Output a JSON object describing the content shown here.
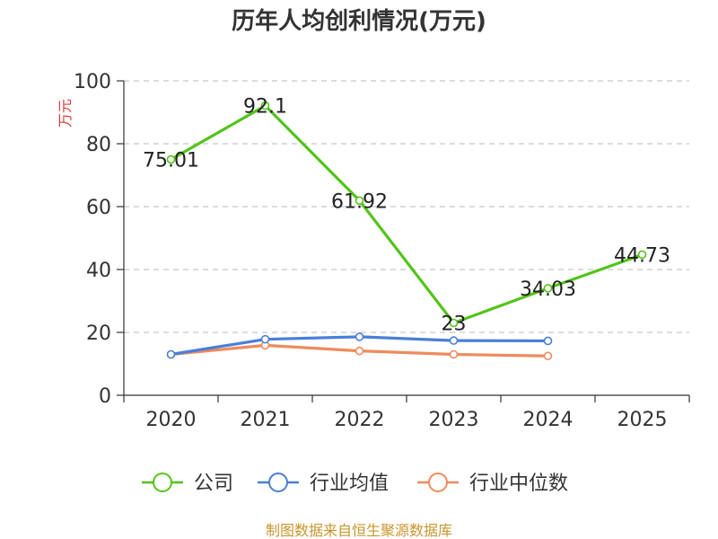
{
  "chart_data": {
    "type": "line",
    "title": "历年人均创利情况(万元)",
    "ylabel": "万元",
    "xlabel": "",
    "categories": [
      "2020",
      "2021",
      "2022",
      "2023",
      "2024",
      "2025"
    ],
    "ylim": [
      0,
      100
    ],
    "yticks": [
      0,
      20,
      40,
      60,
      80,
      100
    ],
    "grid": true,
    "legend_position": "bottom",
    "series": [
      {
        "name": "公司",
        "color": "#52c41a",
        "values": [
          75.01,
          92.1,
          61.92,
          23,
          34.03,
          44.73
        ],
        "labels": [
          "75.01",
          "92.1",
          "61.92",
          "23",
          "34.03",
          "44.73"
        ]
      },
      {
        "name": "行业均值",
        "color": "#4a7fd9",
        "values": [
          13.0,
          17.8,
          18.6,
          17.4,
          17.3,
          null
        ],
        "labels": []
      },
      {
        "name": "行业中位数",
        "color": "#f08a5d",
        "values": [
          13.0,
          15.9,
          14.1,
          13.0,
          12.5,
          null
        ],
        "labels": []
      }
    ],
    "source": "制图数据来自恒生聚源数据库",
    "ylabel_color": "#e03a3a",
    "source_color": "#c8962e"
  }
}
